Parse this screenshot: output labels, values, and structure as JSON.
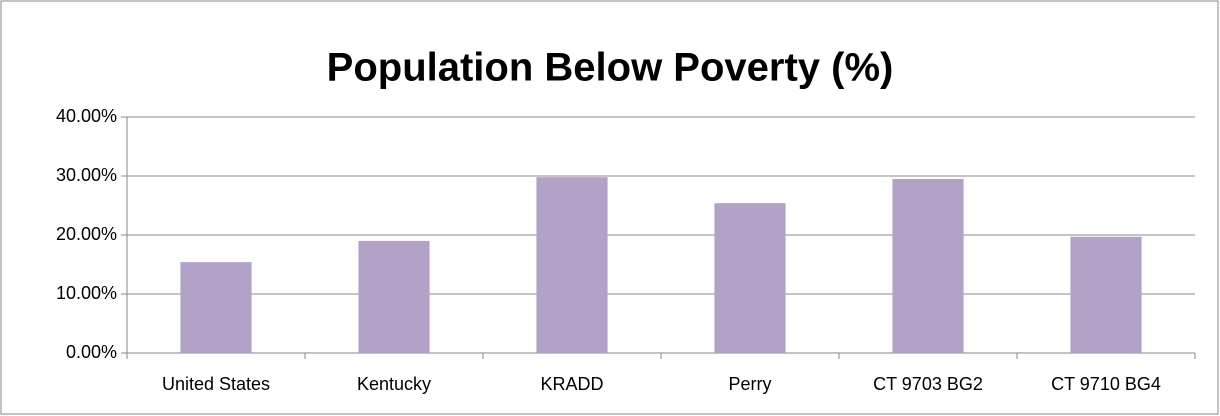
{
  "chart_data": {
    "type": "bar",
    "title": "Population Below Poverty (%)",
    "categories": [
      "United States",
      "Kentucky",
      "KRADD",
      "Perry",
      "CT 9703 BG2",
      "CT 9710 BG4"
    ],
    "values": [
      15.4,
      19.0,
      29.8,
      25.4,
      29.5,
      19.7
    ],
    "color": "#b3a2c7",
    "ylim": [
      0,
      40
    ],
    "yticks": [
      {
        "value": 0,
        "label": "0.00%"
      },
      {
        "value": 10,
        "label": "10.00%"
      },
      {
        "value": 20,
        "label": "20.00%"
      },
      {
        "value": 30,
        "label": "30.00%"
      },
      {
        "value": 40,
        "label": "40.00%"
      }
    ],
    "grid": true
  }
}
